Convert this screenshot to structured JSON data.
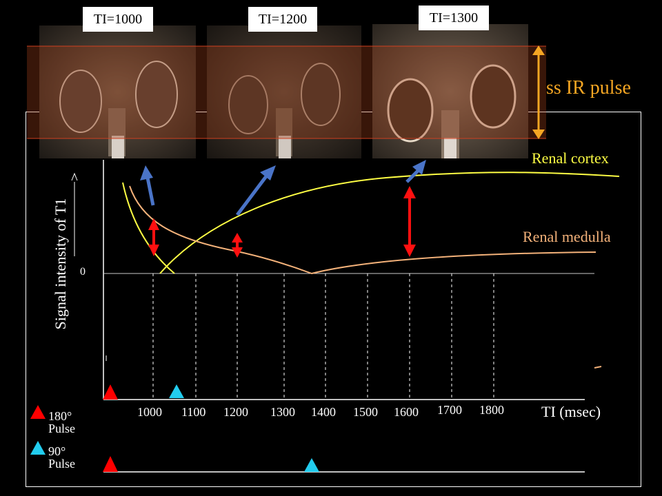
{
  "header_labels": [
    "TI=1000",
    "TI=1200",
    "TI=1300"
  ],
  "ir_pulse_label": "ss IR pulse",
  "curve_labels": {
    "cortex": "Renal cortex",
    "medulla": "Renal medulla"
  },
  "y_axis_label": "Signal intensity of T1",
  "zero_label": "0",
  "x_axis_label": "TI (msec)",
  "x_ticks": [
    "1000",
    "1100",
    "1200",
    "1300",
    "1400",
    "1500",
    "1600",
    "1700",
    "1800"
  ],
  "legend": {
    "pulse180": {
      "deg": "180°",
      "word": "Pulse"
    },
    "pulse90": {
      "deg": "90°",
      "word": "Pulse"
    }
  },
  "colors": {
    "cortex": "#ffff44",
    "medulla": "#f4b27a",
    "ir_pulse": "#f5a623",
    "arrow_red": "#ff1010",
    "arrow_blue": "#4a74c8",
    "marker_180": "#ff0000",
    "marker_90": "#22ccee"
  }
}
